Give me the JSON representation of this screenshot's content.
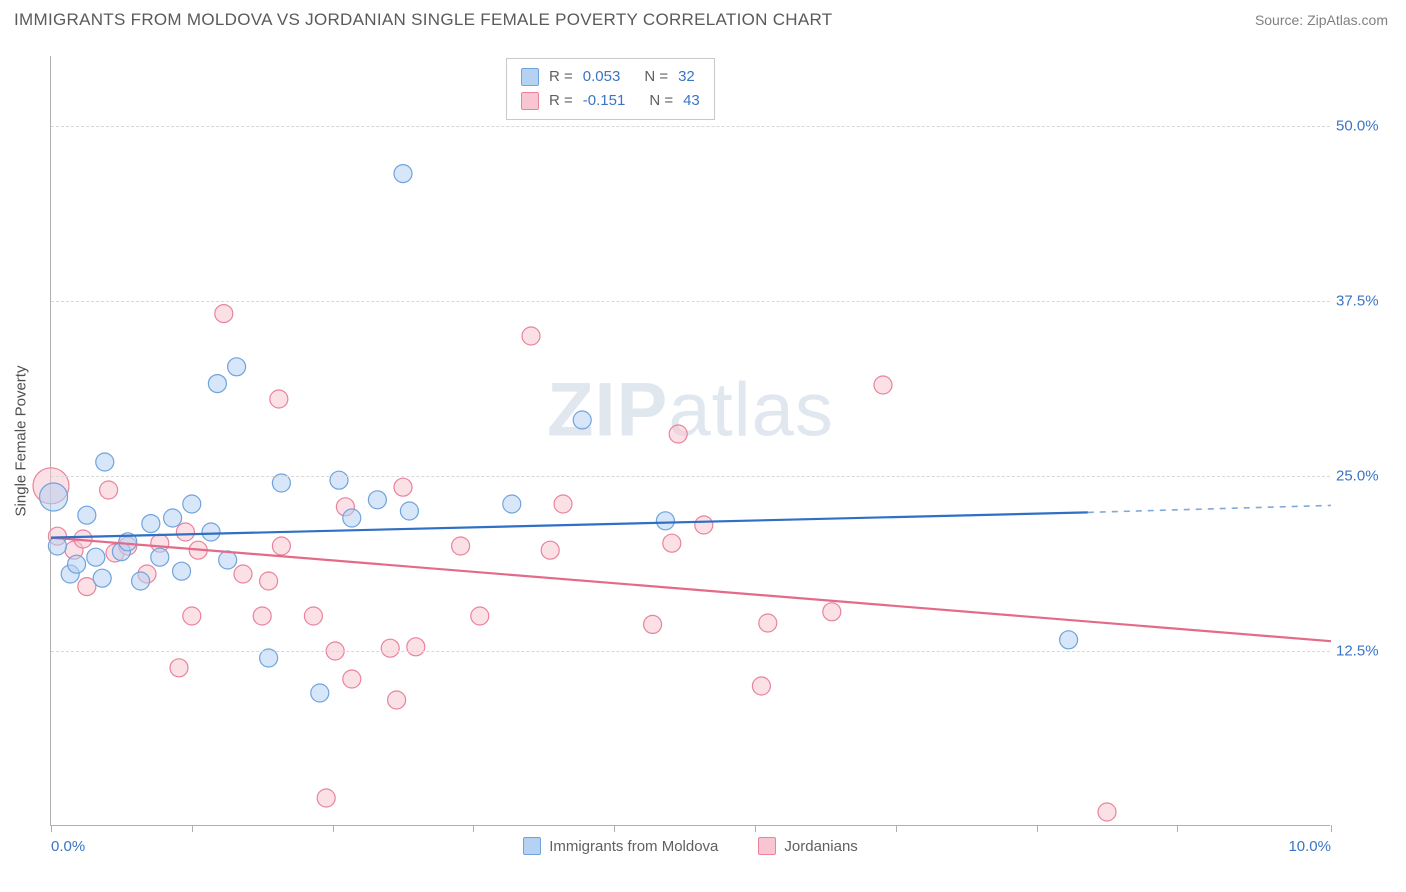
{
  "title": "IMMIGRANTS FROM MOLDOVA VS JORDANIAN SINGLE FEMALE POVERTY CORRELATION CHART",
  "source_label": "Source: ZipAtlas.com",
  "watermark_bold": "ZIP",
  "watermark_rest": "atlas",
  "colors": {
    "series_a_fill": "#b6d2f2",
    "series_a_stroke": "#6fa3dd",
    "series_a_line": "#2f6fc4",
    "series_b_fill": "#f7c6d2",
    "series_b_stroke": "#e9839c",
    "series_b_line": "#e46a8a",
    "grid": "#d8d8d8",
    "axis": "#b0b0b0",
    "tick_text": "#3b74c4",
    "title_text": "#5a5a5a",
    "source_text": "#808080",
    "watermark": "#5a7da8",
    "bg": "#ffffff"
  },
  "chart": {
    "type": "scatter",
    "y_axis_title": "Single Female Poverty",
    "xlim": [
      0,
      10
    ],
    "ylim": [
      0,
      55
    ],
    "y_ticks": [
      12.5,
      25.0,
      37.5,
      50.0
    ],
    "y_tick_labels": [
      "12.5%",
      "25.0%",
      "37.5%",
      "50.0%"
    ],
    "x_ticks": [
      0,
      1.1,
      2.2,
      3.3,
      4.4,
      5.5,
      6.6,
      7.7,
      8.8,
      10.0
    ],
    "x_tick_labels_shown": {
      "0": "0.0%",
      "10": "10.0%"
    },
    "point_radius": 9,
    "point_opacity": 0.55,
    "line_width": 2.2
  },
  "legend_top": {
    "rows": [
      {
        "swatch": "a",
        "r_label": "R =",
        "r_value": "0.053",
        "n_label": "N =",
        "n_value": "32"
      },
      {
        "swatch": "b",
        "r_label": "R =",
        "r_value": "-0.151",
        "n_label": "N =",
        "n_value": "43"
      }
    ]
  },
  "legend_bottom": {
    "items": [
      {
        "swatch": "a",
        "label": "Immigrants from Moldova"
      },
      {
        "swatch": "b",
        "label": "Jordanians"
      }
    ]
  },
  "series_a": {
    "name": "Immigrants from Moldova",
    "trend": {
      "x1": 0,
      "y1": 20.6,
      "x2": 8.1,
      "y2": 22.4,
      "extend_x": 10,
      "extend_y": 22.9
    },
    "points": [
      [
        0.02,
        23.5,
        14
      ],
      [
        0.05,
        20.0,
        9
      ],
      [
        0.15,
        18.0,
        9
      ],
      [
        0.2,
        18.7,
        9
      ],
      [
        0.28,
        22.2,
        9
      ],
      [
        0.35,
        19.2,
        9
      ],
      [
        0.4,
        17.7,
        9
      ],
      [
        0.42,
        26.0,
        9
      ],
      [
        0.55,
        19.6,
        9
      ],
      [
        0.6,
        20.3,
        9
      ],
      [
        0.7,
        17.5,
        9
      ],
      [
        0.78,
        21.6,
        9
      ],
      [
        0.85,
        19.2,
        9
      ],
      [
        0.95,
        22.0,
        9
      ],
      [
        1.02,
        18.2,
        9
      ],
      [
        1.1,
        23.0,
        9
      ],
      [
        1.25,
        21.0,
        9
      ],
      [
        1.3,
        31.6,
        9
      ],
      [
        1.38,
        19.0,
        9
      ],
      [
        1.45,
        32.8,
        9
      ],
      [
        1.7,
        12.0,
        9
      ],
      [
        1.8,
        24.5,
        9
      ],
      [
        2.1,
        9.5,
        9
      ],
      [
        2.25,
        24.7,
        9
      ],
      [
        2.35,
        22.0,
        9
      ],
      [
        2.55,
        23.3,
        9
      ],
      [
        2.75,
        46.6,
        9
      ],
      [
        2.8,
        22.5,
        9
      ],
      [
        3.6,
        23.0,
        9
      ],
      [
        4.15,
        29.0,
        9
      ],
      [
        4.8,
        21.8,
        9
      ],
      [
        7.95,
        13.3,
        9
      ]
    ]
  },
  "series_b": {
    "name": "Jordanians",
    "trend": {
      "x1": 0,
      "y1": 20.6,
      "x2": 10,
      "y2": 13.2
    },
    "points": [
      [
        0.0,
        24.3,
        18
      ],
      [
        0.05,
        20.7,
        9
      ],
      [
        0.18,
        19.7,
        9
      ],
      [
        0.25,
        20.5,
        9
      ],
      [
        0.28,
        17.1,
        9
      ],
      [
        0.45,
        24.0,
        9
      ],
      [
        0.5,
        19.5,
        9
      ],
      [
        0.6,
        20.0,
        9
      ],
      [
        0.75,
        18.0,
        9
      ],
      [
        0.85,
        20.2,
        9
      ],
      [
        1.0,
        11.3,
        9
      ],
      [
        1.05,
        21.0,
        9
      ],
      [
        1.1,
        15.0,
        9
      ],
      [
        1.15,
        19.7,
        9
      ],
      [
        1.35,
        36.6,
        9
      ],
      [
        1.5,
        18.0,
        9
      ],
      [
        1.65,
        15.0,
        9
      ],
      [
        1.7,
        17.5,
        9
      ],
      [
        1.78,
        30.5,
        9
      ],
      [
        1.8,
        20.0,
        9
      ],
      [
        2.05,
        15.0,
        9
      ],
      [
        2.15,
        2.0,
        9
      ],
      [
        2.22,
        12.5,
        9
      ],
      [
        2.3,
        22.8,
        9
      ],
      [
        2.35,
        10.5,
        9
      ],
      [
        2.65,
        12.7,
        9
      ],
      [
        2.7,
        9.0,
        9
      ],
      [
        2.75,
        24.2,
        9
      ],
      [
        2.85,
        12.8,
        9
      ],
      [
        3.2,
        20.0,
        9
      ],
      [
        3.35,
        15.0,
        9
      ],
      [
        3.75,
        35.0,
        9
      ],
      [
        3.9,
        19.7,
        9
      ],
      [
        4.0,
        23.0,
        9
      ],
      [
        4.7,
        14.4,
        9
      ],
      [
        4.85,
        20.2,
        9
      ],
      [
        4.9,
        28.0,
        9
      ],
      [
        5.1,
        21.5,
        9
      ],
      [
        5.55,
        10.0,
        9
      ],
      [
        5.6,
        14.5,
        9
      ],
      [
        6.1,
        15.3,
        9
      ],
      [
        6.5,
        31.5,
        9
      ],
      [
        8.25,
        1.0,
        9
      ]
    ]
  }
}
